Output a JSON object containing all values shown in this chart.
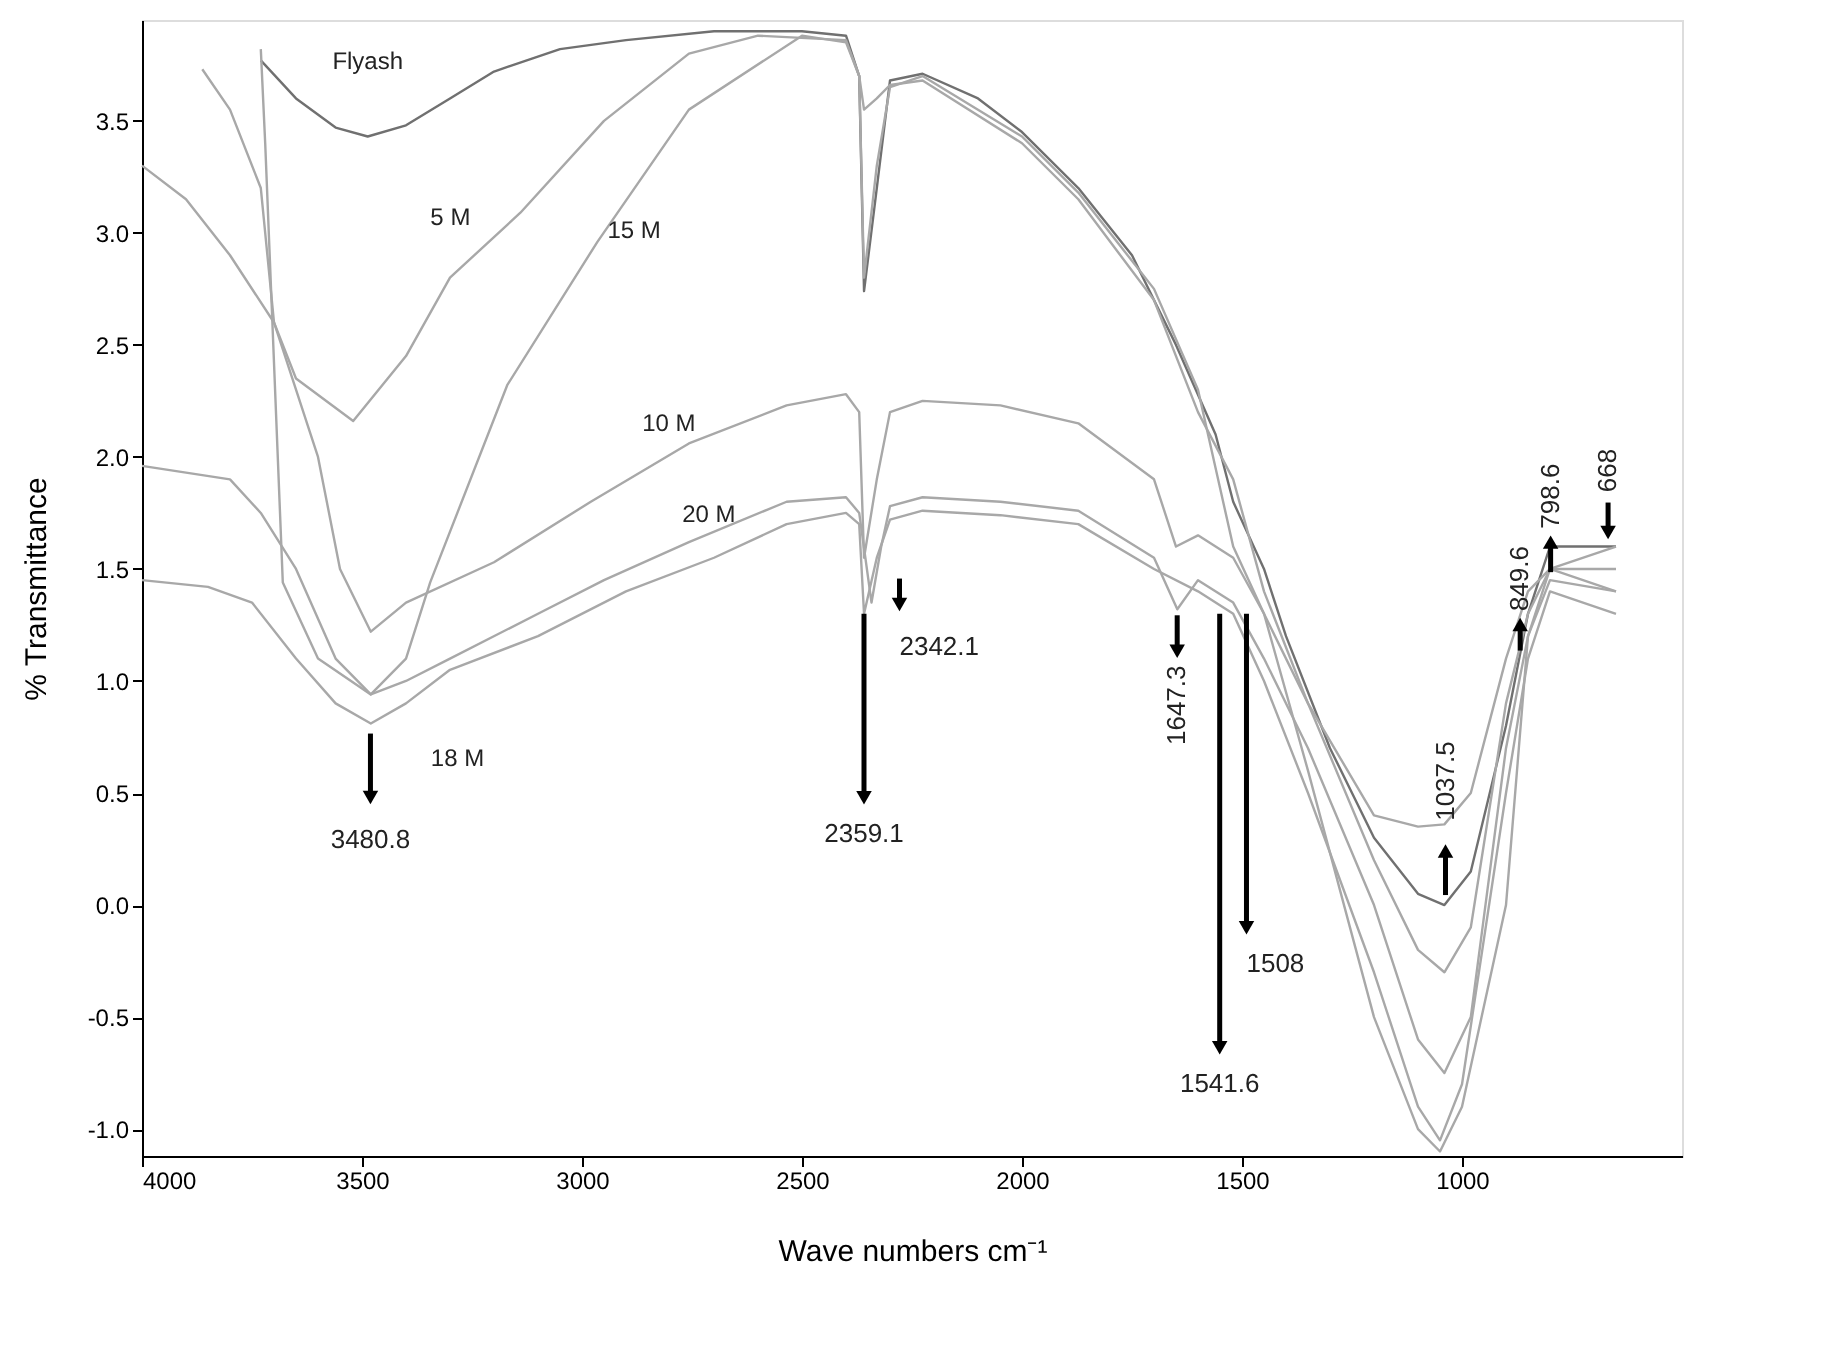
{
  "chart_data": {
    "type": "line",
    "xlabel": "Wave numbers cm⁻¹",
    "ylabel": "% Transmittance",
    "xlim": [
      4000,
      500
    ],
    "xticks": [
      4000,
      3500,
      3000,
      2500,
      2000,
      1500,
      1000
    ],
    "ylim": [
      -1.12,
      3.95
    ],
    "yticks": [
      {
        "value": -1,
        "label": "-1.0"
      },
      {
        "value": -0.5,
        "label": "-0.5"
      },
      {
        "value": 0,
        "label": "0.0"
      },
      {
        "value": 0.5,
        "label": "0.5"
      },
      {
        "value": 1,
        "label": "1.0"
      },
      {
        "value": 1.5,
        "label": "1.5"
      },
      {
        "value": 2,
        "label": "2.0"
      },
      {
        "value": 2.5,
        "label": "2.5"
      },
      {
        "value": 3,
        "label": "3.0"
      },
      {
        "value": 3.5,
        "label": "3.5"
      }
    ],
    "grid": false,
    "marker": "none",
    "line_style": "solid",
    "series": [
      {
        "name": "Flyash",
        "color": "#707070",
        "x": [
          3730,
          3650,
          3560,
          3487,
          3400,
          3300,
          3200,
          3050,
          2900,
          2700,
          2500,
          2400,
          2370,
          2359,
          2330,
          2300,
          2226,
          2100,
          2000,
          1872,
          1750,
          1650,
          1560,
          1520,
          1450,
          1400,
          1300,
          1200,
          1100,
          1040,
          980,
          900,
          850,
          800,
          650
        ],
        "values": [
          3.77,
          3.6,
          3.47,
          3.43,
          3.48,
          3.6,
          3.72,
          3.82,
          3.86,
          3.9,
          3.9,
          3.88,
          3.7,
          2.74,
          3.2,
          3.68,
          3.71,
          3.6,
          3.45,
          3.2,
          2.9,
          2.5,
          2.1,
          1.8,
          1.5,
          1.2,
          0.7,
          0.3,
          0.05,
          0.0,
          0.15,
          0.8,
          1.3,
          1.6,
          1.6
        ]
      },
      {
        "name": "5 M",
        "color": "#a8a8a8",
        "x": [
          3863,
          3800,
          3730,
          3700,
          3650,
          3520,
          3400,
          3300,
          3140,
          2950,
          2757,
          2600,
          2400,
          2370,
          2359,
          2330,
          2300,
          2226,
          2000,
          1872,
          1700,
          1600,
          1520,
          1450,
          1350,
          1200,
          1100,
          1040,
          980,
          900,
          850,
          800,
          650
        ],
        "values": [
          3.73,
          3.55,
          3.2,
          2.6,
          2.35,
          2.16,
          2.45,
          2.8,
          3.09,
          3.5,
          3.8,
          3.88,
          3.86,
          3.7,
          3.55,
          3.6,
          3.66,
          3.68,
          3.4,
          3.15,
          2.7,
          2.2,
          1.9,
          1.4,
          0.9,
          0.4,
          0.35,
          0.36,
          0.5,
          1.1,
          1.4,
          1.5,
          1.5
        ]
      },
      {
        "name": "10 M",
        "color": "#a8a8a8",
        "x": [
          4000,
          3900,
          3800,
          3700,
          3600,
          3550,
          3480,
          3400,
          3200,
          2980,
          2757,
          2535,
          2400,
          2370,
          2359,
          2330,
          2300,
          2226,
          2049,
          1872,
          1700,
          1650,
          1600,
          1520,
          1450,
          1350,
          1200,
          1100,
          1040,
          980,
          900,
          850,
          800,
          650
        ],
        "values": [
          3.3,
          3.15,
          2.9,
          2.6,
          2.0,
          1.5,
          1.22,
          1.35,
          1.53,
          1.8,
          2.06,
          2.23,
          2.28,
          2.2,
          1.55,
          1.9,
          2.2,
          2.25,
          2.23,
          2.15,
          1.9,
          1.6,
          1.65,
          1.55,
          1.3,
          0.9,
          0.2,
          -0.2,
          -0.3,
          -0.1,
          0.9,
          1.3,
          1.5,
          1.4
        ]
      },
      {
        "name": "15 M",
        "color": "#a8a8a8",
        "x": [
          3730,
          3720,
          3680,
          3600,
          3480,
          3400,
          3345,
          3170,
          2965,
          2757,
          2500,
          2400,
          2370,
          2359,
          2330,
          2300,
          2226,
          2000,
          1872,
          1700,
          1600,
          1520,
          1450,
          1350,
          1200,
          1100,
          1050,
          1000,
          900,
          850,
          800,
          650
        ],
        "values": [
          3.82,
          3.4,
          1.44,
          1.1,
          0.94,
          1.1,
          1.44,
          2.32,
          2.96,
          3.55,
          3.88,
          3.85,
          3.7,
          2.8,
          3.3,
          3.65,
          3.7,
          3.43,
          3.18,
          2.75,
          2.3,
          1.6,
          1.3,
          0.6,
          -0.5,
          -1.0,
          -1.1,
          -0.9,
          0.0,
          1.2,
          1.5,
          1.6
        ]
      },
      {
        "name": "18 M",
        "color": "#a8a8a8",
        "x": [
          4000,
          3850,
          3750,
          3650,
          3560,
          3480,
          3400,
          3300,
          3100,
          2900,
          2700,
          2535,
          2400,
          2370,
          2359,
          2330,
          2300,
          2226,
          2049,
          1872,
          1700,
          1600,
          1520,
          1450,
          1350,
          1200,
          1100,
          1050,
          1000,
          900,
          850,
          800,
          650
        ],
        "values": [
          1.45,
          1.42,
          1.35,
          1.1,
          0.9,
          0.81,
          0.9,
          1.05,
          1.2,
          1.4,
          1.55,
          1.7,
          1.75,
          1.7,
          1.3,
          1.55,
          1.72,
          1.76,
          1.74,
          1.7,
          1.5,
          1.4,
          1.3,
          1.0,
          0.5,
          -0.3,
          -0.9,
          -1.05,
          -0.8,
          0.5,
          1.1,
          1.4,
          1.3
        ]
      },
      {
        "name": "20 M",
        "color": "#a8a8a8",
        "x": [
          4000,
          3800,
          3730,
          3650,
          3560,
          3480,
          3400,
          3300,
          3100,
          2950,
          2757,
          2535,
          2400,
          2370,
          2342,
          2320,
          2300,
          2226,
          2049,
          1872,
          1700,
          1647,
          1600,
          1520,
          1450,
          1350,
          1200,
          1100,
          1040,
          980,
          900,
          850,
          800,
          650
        ],
        "values": [
          1.96,
          1.9,
          1.75,
          1.5,
          1.1,
          0.94,
          1.0,
          1.1,
          1.3,
          1.45,
          1.62,
          1.8,
          1.82,
          1.75,
          1.35,
          1.6,
          1.78,
          1.82,
          1.8,
          1.76,
          1.55,
          1.32,
          1.45,
          1.35,
          1.1,
          0.7,
          0.0,
          -0.6,
          -0.75,
          -0.5,
          0.7,
          1.2,
          1.45,
          1.4
        ]
      }
    ],
    "annotations": [
      {
        "text": "3480.8",
        "x": 3480.8,
        "y": 0.81
      },
      {
        "text": "2342.1",
        "x": 2342.1,
        "y": 1.35
      },
      {
        "text": "2359.1",
        "x": 2359.1,
        "y": 1.3
      },
      {
        "text": "1647.3",
        "x": 1647.3,
        "y": 1.32
      },
      {
        "text": "1541.6",
        "x": 1541.6,
        "y": 1.3
      },
      {
        "text": "1508",
        "x": 1508,
        "y": 1.3
      },
      {
        "text": "1037.5",
        "x": 1037.5,
        "y": 0.0
      },
      {
        "text": "849.6",
        "x": 849.6,
        "y": 1.1
      },
      {
        "text": "798.6",
        "x": 798.6,
        "y": 1.45
      },
      {
        "text": "668",
        "x": 668,
        "y": 1.6
      }
    ]
  }
}
